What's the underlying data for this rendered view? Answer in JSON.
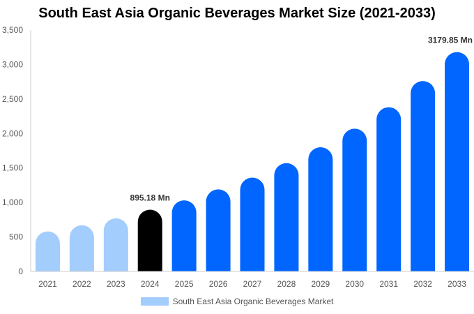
{
  "chart_data": {
    "type": "bar",
    "title": "South East Asia Organic Beverages Market Size (2021-2033)",
    "categories": [
      "2021",
      "2022",
      "2023",
      "2024",
      "2025",
      "2026",
      "2027",
      "2028",
      "2029",
      "2030",
      "2031",
      "2032",
      "2033"
    ],
    "series": [
      {
        "name": "South East Asia Organic Beverages Market",
        "values": [
          580,
          670,
          770,
          895.18,
          1030,
          1190,
          1360,
          1570,
          1800,
          2070,
          2380,
          2760,
          3179.85
        ]
      }
    ],
    "data_labels": [
      {
        "category": "2024",
        "text": "895.18 Mn"
      },
      {
        "category": "2033",
        "text": "3179.85 Mn"
      }
    ],
    "ylim": [
      0,
      3500
    ],
    "yticks": [
      0,
      500,
      1000,
      1500,
      2000,
      2500,
      3000,
      3500
    ],
    "ytick_labels": [
      "0",
      "500",
      "1,000",
      "1,500",
      "2,000",
      "2,500",
      "3,000",
      "3,500"
    ],
    "xlabel": "",
    "ylabel": "",
    "grid": false,
    "legend_position": "bottom",
    "colors": {
      "historic": "#a3cdfc",
      "base_year": "#000000",
      "forecast": "#0066ff",
      "axis": "#cccccc"
    }
  }
}
